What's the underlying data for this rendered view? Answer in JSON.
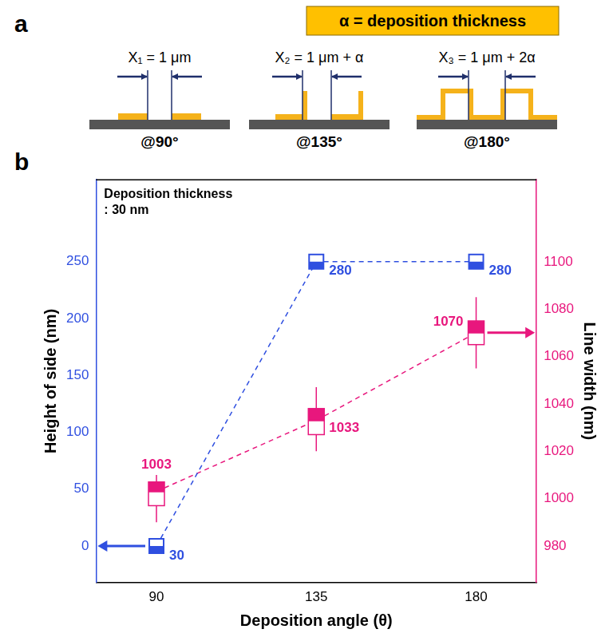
{
  "diagram_a": {
    "panel_label": "a",
    "key": "α = deposition thickness",
    "steps": [
      {
        "width": "X₁ = 1 μm",
        "angle": "@90°"
      },
      {
        "width": "X₂ = 1 μm + α",
        "angle": "@135°"
      },
      {
        "width": "X₃ = 1 μm + 2α",
        "angle": "@180°"
      }
    ]
  },
  "chart_data": {
    "type": "box",
    "panel_label": "b",
    "annotation": [
      "Deposition thickness",
      ": 30 nm"
    ],
    "x_label": "Deposition angle (θ)",
    "y_label": "Height of side (nm)",
    "y2_label": "Line width (nm)",
    "x": [
      90,
      135,
      180
    ],
    "xlim": [
      73,
      197
    ],
    "xticks": [
      90,
      135,
      180
    ],
    "ylim": [
      -32,
      322
    ],
    "yticks": [
      0,
      50,
      100,
      150,
      200,
      250
    ],
    "y2lim": [
      964.6,
      1134.6
    ],
    "y2ticks": [
      980,
      1000,
      1020,
      1040,
      1060,
      1080,
      1100
    ],
    "grid": false,
    "series": [
      {
        "axis": "y",
        "color": "#2f4fe0",
        "marker": "half_square",
        "line_style": "dashed",
        "values": [
          0,
          250,
          250
        ],
        "annotations": [
          "30",
          "280",
          "280"
        ]
      },
      {
        "axis": "y2",
        "color": "#e8177d",
        "marker": "box",
        "line_style": "dashed",
        "values": [
          1003,
          1033,
          1070
        ],
        "data_labels": true,
        "min": [
          990,
          1020,
          1055
        ],
        "q1": [
          997,
          1027,
          1065
        ],
        "q3": [
          1007,
          1038,
          1075
        ],
        "max": [
          1010,
          1047,
          1085
        ]
      }
    ]
  }
}
